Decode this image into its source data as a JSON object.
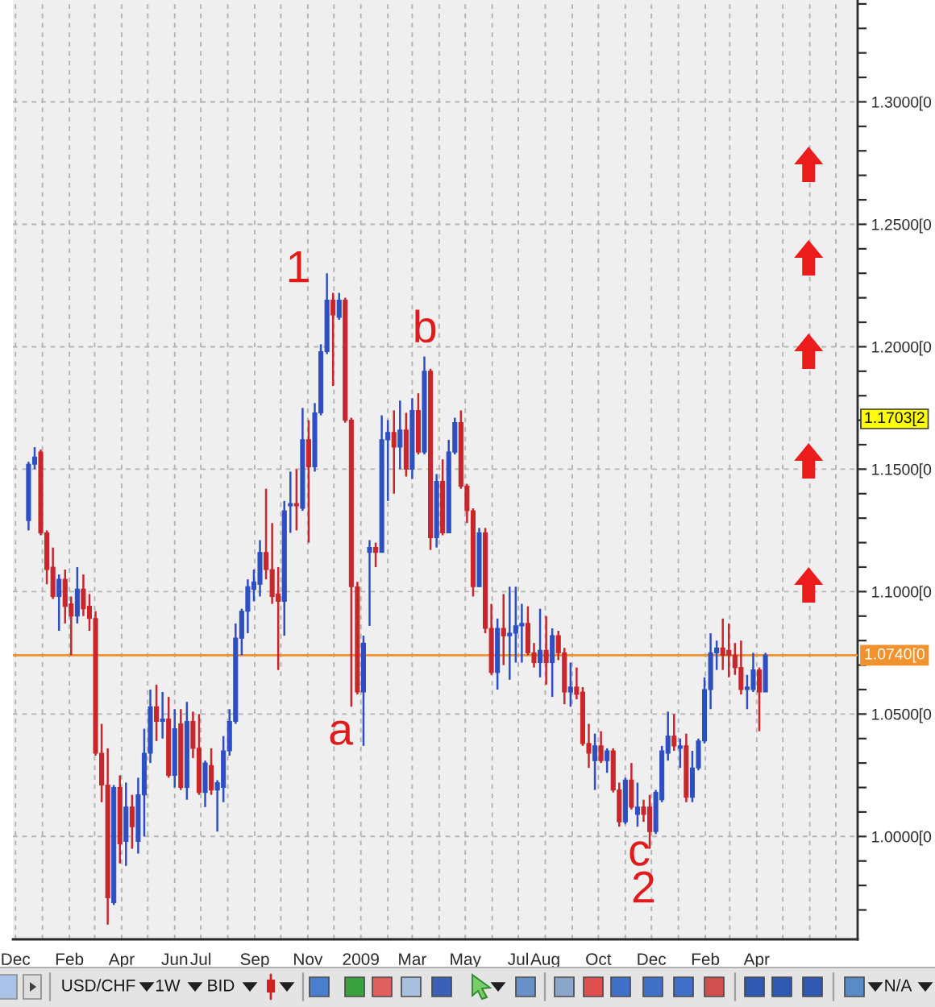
{
  "chart_data": {
    "type": "candlestick",
    "x": [
      "2007-12-16",
      "2007-12-23",
      "2007-12-30",
      "2008-01-06",
      "2008-01-13",
      "2008-01-20",
      "2008-01-27",
      "2008-02-03",
      "2008-02-10",
      "2008-02-17",
      "2008-02-24",
      "2008-03-02",
      "2008-03-09",
      "2008-03-16",
      "2008-03-23",
      "2008-03-30",
      "2008-04-06",
      "2008-04-13",
      "2008-04-20",
      "2008-04-27",
      "2008-05-04",
      "2008-05-11",
      "2008-05-18",
      "2008-05-25",
      "2008-06-01",
      "2008-06-08",
      "2008-06-15",
      "2008-06-22",
      "2008-06-29",
      "2008-07-06",
      "2008-07-13",
      "2008-07-20",
      "2008-07-27",
      "2008-08-03",
      "2008-08-10",
      "2008-08-17",
      "2008-08-24",
      "2008-08-31",
      "2008-09-07",
      "2008-09-14",
      "2008-09-21",
      "2008-09-28",
      "2008-10-05",
      "2008-10-12",
      "2008-10-19",
      "2008-10-26",
      "2008-11-02",
      "2008-11-09",
      "2008-11-16",
      "2008-11-23",
      "2008-11-30",
      "2008-12-07",
      "2008-12-14",
      "2008-12-21",
      "2008-12-28",
      "2009-01-04",
      "2009-01-11",
      "2009-01-18",
      "2009-01-25",
      "2009-02-01",
      "2009-02-08",
      "2009-02-15",
      "2009-02-22",
      "2009-03-01",
      "2009-03-08",
      "2009-03-15",
      "2009-03-22",
      "2009-03-29",
      "2009-04-05",
      "2009-04-12",
      "2009-04-19",
      "2009-04-26",
      "2009-05-03",
      "2009-05-10",
      "2009-05-17",
      "2009-05-24",
      "2009-05-31",
      "2009-06-07",
      "2009-06-14",
      "2009-06-21",
      "2009-06-28",
      "2009-07-05",
      "2009-07-12",
      "2009-07-19",
      "2009-07-26",
      "2009-08-02",
      "2009-08-09",
      "2009-08-16",
      "2009-08-23",
      "2009-08-30",
      "2009-09-06",
      "2009-09-13",
      "2009-09-20",
      "2009-09-27",
      "2009-10-04",
      "2009-10-11",
      "2009-10-18",
      "2009-10-25",
      "2009-11-01",
      "2009-11-08",
      "2009-11-15",
      "2009-11-22",
      "2009-11-29",
      "2009-12-06",
      "2009-12-13",
      "2009-12-20",
      "2009-12-27",
      "2010-01-03",
      "2010-01-10",
      "2010-01-17",
      "2010-01-24",
      "2010-01-31",
      "2010-02-07",
      "2010-02-14",
      "2010-02-21",
      "2010-02-28",
      "2010-03-07",
      "2010-03-14",
      "2010-03-21",
      "2010-03-28",
      "2010-04-04",
      "2010-04-11"
    ],
    "ohlc": [
      [
        1.129,
        1.153,
        1.125,
        1.152
      ],
      [
        1.152,
        1.159,
        1.15,
        1.155
      ],
      [
        1.157,
        1.158,
        1.123,
        1.124
      ],
      [
        1.124,
        1.125,
        1.103,
        1.109
      ],
      [
        1.11,
        1.118,
        1.097,
        1.098
      ],
      [
        1.098,
        1.107,
        1.084,
        1.105
      ],
      [
        1.105,
        1.109,
        1.087,
        1.094
      ],
      [
        1.095,
        1.098,
        1.074,
        1.09
      ],
      [
        1.09,
        1.11,
        1.087,
        1.101
      ],
      [
        1.101,
        1.107,
        1.09,
        1.093
      ],
      [
        1.094,
        1.099,
        1.084,
        1.089
      ],
      [
        1.089,
        1.092,
        1.033,
        1.034
      ],
      [
        1.034,
        1.046,
        1.014,
        1.021
      ],
      [
        1.021,
        1.036,
        0.964,
        0.975
      ],
      [
        0.973,
        1.021,
        0.972,
        1.02
      ],
      [
        1.02,
        1.025,
        0.989,
        0.997
      ],
      [
        0.998,
        1.022,
        0.988,
        1.012
      ],
      [
        1.012,
        1.017,
        0.995,
        1.004
      ],
      [
        0.998,
        1.024,
        0.993,
        1.017
      ],
      [
        1.017,
        1.044,
        1.0,
        1.034
      ],
      [
        1.034,
        1.06,
        1.03,
        1.053
      ],
      [
        1.053,
        1.062,
        1.039,
        1.047
      ],
      [
        1.047,
        1.059,
        1.04,
        1.048
      ],
      [
        1.048,
        1.057,
        1.024,
        1.025
      ],
      [
        1.025,
        1.052,
        1.02,
        1.044
      ],
      [
        1.046,
        1.052,
        1.019,
        1.02
      ],
      [
        1.02,
        1.055,
        1.015,
        1.047
      ],
      [
        1.047,
        1.051,
        1.032,
        1.036
      ],
      [
        1.036,
        1.05,
        1.017,
        1.018
      ],
      [
        1.018,
        1.031,
        1.012,
        1.03
      ],
      [
        1.029,
        1.036,
        1.017,
        1.019
      ],
      [
        1.019,
        1.023,
        1.002,
        1.022
      ],
      [
        1.02,
        1.041,
        1.014,
        1.035
      ],
      [
        1.035,
        1.052,
        1.033,
        1.047
      ],
      [
        1.047,
        1.087,
        1.046,
        1.081
      ],
      [
        1.081,
        1.093,
        1.074,
        1.092
      ],
      [
        1.092,
        1.105,
        1.083,
        1.102
      ],
      [
        1.101,
        1.109,
        1.096,
        1.104
      ],
      [
        1.103,
        1.121,
        1.098,
        1.116
      ],
      [
        1.116,
        1.142,
        1.105,
        1.109
      ],
      [
        1.109,
        1.128,
        1.095,
        1.098
      ],
      [
        1.099,
        1.11,
        1.068,
        1.096
      ],
      [
        1.096,
        1.137,
        1.082,
        1.133
      ],
      [
        1.135,
        1.149,
        1.124,
        1.136
      ],
      [
        1.136,
        1.15,
        1.125,
        1.135
      ],
      [
        1.134,
        1.175,
        1.133,
        1.162
      ],
      [
        1.162,
        1.17,
        1.12,
        1.151
      ],
      [
        1.151,
        1.177,
        1.149,
        1.173
      ],
      [
        1.173,
        1.201,
        1.172,
        1.198
      ],
      [
        1.198,
        1.23,
        1.197,
        1.219
      ],
      [
        1.219,
        1.222,
        1.184,
        1.213
      ],
      [
        1.212,
        1.222,
        1.211,
        1.219
      ],
      [
        1.219,
        1.22,
        1.169,
        1.17
      ],
      [
        1.17,
        1.171,
        1.053,
        1.102
      ],
      [
        1.102,
        1.104,
        1.058,
        1.059
      ],
      [
        1.059,
        1.082,
        1.037,
        1.079
      ],
      [
        1.116,
        1.121,
        1.086,
        1.118
      ],
      [
        1.118,
        1.12,
        1.11,
        1.116
      ],
      [
        1.116,
        1.172,
        1.116,
        1.162
      ],
      [
        1.162,
        1.17,
        1.137,
        1.165
      ],
      [
        1.165,
        1.174,
        1.14,
        1.159
      ],
      [
        1.159,
        1.178,
        1.15,
        1.166
      ],
      [
        1.166,
        1.173,
        1.147,
        1.15
      ],
      [
        1.15,
        1.179,
        1.146,
        1.174
      ],
      [
        1.174,
        1.181,
        1.156,
        1.157
      ],
      [
        1.157,
        1.196,
        1.156,
        1.19
      ],
      [
        1.19,
        1.191,
        1.117,
        1.122
      ],
      [
        1.122,
        1.148,
        1.118,
        1.145
      ],
      [
        1.145,
        1.154,
        1.123,
        1.124
      ],
      [
        1.124,
        1.162,
        1.124,
        1.157
      ],
      [
        1.157,
        1.171,
        1.156,
        1.169
      ],
      [
        1.169,
        1.174,
        1.142,
        1.143
      ],
      [
        1.143,
        1.144,
        1.128,
        1.133
      ],
      [
        1.133,
        1.134,
        1.098,
        1.102
      ],
      [
        1.102,
        1.126,
        1.102,
        1.124
      ],
      [
        1.124,
        1.126,
        1.083,
        1.085
      ],
      [
        1.085,
        1.095,
        1.066,
        1.067
      ],
      [
        1.067,
        1.089,
        1.06,
        1.085
      ],
      [
        1.085,
        1.099,
        1.07,
        1.082
      ],
      [
        1.082,
        1.102,
        1.064,
        1.083
      ],
      [
        1.083,
        1.102,
        1.071,
        1.086
      ],
      [
        1.086,
        1.095,
        1.071,
        1.087
      ],
      [
        1.087,
        1.094,
        1.074,
        1.075
      ],
      [
        1.075,
        1.079,
        1.069,
        1.071
      ],
      [
        1.071,
        1.093,
        1.065,
        1.076
      ],
      [
        1.076,
        1.09,
        1.062,
        1.071
      ],
      [
        1.071,
        1.085,
        1.057,
        1.082
      ],
      [
        1.082,
        1.084,
        1.072,
        1.075
      ],
      [
        1.075,
        1.077,
        1.054,
        1.059
      ],
      [
        1.059,
        1.071,
        1.053,
        1.061
      ],
      [
        1.061,
        1.069,
        1.056,
        1.058
      ],
      [
        1.059,
        1.061,
        1.037,
        1.038
      ],
      [
        1.038,
        1.046,
        1.028,
        1.034
      ],
      [
        1.031,
        1.042,
        1.019,
        1.037
      ],
      [
        1.037,
        1.043,
        1.03,
        1.031
      ],
      [
        1.031,
        1.036,
        1.026,
        1.035
      ],
      [
        1.035,
        1.036,
        1.018,
        1.019
      ],
      [
        1.019,
        1.022,
        1.004,
        1.006
      ],
      [
        1.006,
        1.024,
        1.005,
        1.023
      ],
      [
        1.023,
        1.03,
        1.011,
        1.012
      ],
      [
        1.009,
        1.022,
        1.004,
        1.012
      ],
      [
        1.012,
        1.015,
        1.006,
        1.009
      ],
      [
        1.012,
        1.017,
        0.995,
        1.002
      ],
      [
        1.002,
        1.019,
        1.001,
        1.018
      ],
      [
        1.015,
        1.037,
        1.014,
        1.035
      ],
      [
        1.034,
        1.051,
        1.031,
        1.041
      ],
      [
        1.041,
        1.05,
        1.035,
        1.037
      ],
      [
        1.036,
        1.04,
        1.028,
        1.037
      ],
      [
        1.037,
        1.042,
        1.014,
        1.016
      ],
      [
        1.016,
        1.035,
        1.014,
        1.028
      ],
      [
        1.028,
        1.04,
        1.027,
        1.039
      ],
      [
        1.039,
        1.065,
        1.038,
        1.06
      ],
      [
        1.06,
        1.083,
        1.052,
        1.075
      ],
      [
        1.075,
        1.08,
        1.068,
        1.077
      ],
      [
        1.077,
        1.089,
        1.068,
        1.074
      ],
      [
        1.076,
        1.087,
        1.065,
        1.074
      ],
      [
        1.074,
        1.079,
        1.066,
        1.069
      ],
      [
        1.069,
        1.08,
        1.058,
        1.06
      ],
      [
        1.06,
        1.066,
        1.052,
        1.061
      ],
      [
        1.06,
        1.075,
        1.059,
        1.068
      ],
      [
        1.068,
        1.069,
        1.043,
        1.059
      ],
      [
        1.059,
        1.075,
        1.059,
        1.074
      ]
    ],
    "colors": [
      "#2d4fc2",
      "#2d4fc2",
      "#c9262b",
      "#c9262b",
      "#c9262b",
      "#2d4fc2",
      "#c9262b",
      "#c9262b",
      "#2d4fc2",
      "#c9262b",
      "#c9262b",
      "#c9262b",
      "#c9262b",
      "#c9262b",
      "#2d4fc2",
      "#c9262b",
      "#2d4fc2",
      "#c9262b",
      "#2d4fc2",
      "#2d4fc2",
      "#2d4fc2",
      "#c9262b",
      "#2d4fc2",
      "#c9262b",
      "#2d4fc2",
      "#c9262b",
      "#2d4fc2",
      "#c9262b",
      "#c9262b",
      "#2d4fc2",
      "#c9262b",
      "#2d4fc2",
      "#2d4fc2",
      "#2d4fc2",
      "#2d4fc2",
      "#2d4fc2",
      "#2d4fc2",
      "#2d4fc2",
      "#2d4fc2",
      "#c9262b",
      "#c9262b",
      "#c9262b",
      "#2d4fc2",
      "#2d4fc2",
      "#c9262b",
      "#2d4fc2",
      "#c9262b",
      "#2d4fc2",
      "#2d4fc2",
      "#2d4fc2",
      "#c9262b",
      "#2d4fc2",
      "#c9262b",
      "#c9262b",
      "#c9262b",
      "#2d4fc2",
      "#2d4fc2",
      "#c9262b",
      "#2d4fc2",
      "#2d4fc2",
      "#c9262b",
      "#2d4fc2",
      "#c9262b",
      "#2d4fc2",
      "#c9262b",
      "#2d4fc2",
      "#c9262b",
      "#2d4fc2",
      "#c9262b",
      "#2d4fc2",
      "#2d4fc2",
      "#c9262b",
      "#c9262b",
      "#c9262b",
      "#2d4fc2",
      "#c9262b",
      "#c9262b",
      "#2d4fc2",
      "#c9262b",
      "#2d4fc2",
      "#2d4fc2",
      "#2d4fc2",
      "#c9262b",
      "#c9262b",
      "#2d4fc2",
      "#c9262b",
      "#2d4fc2",
      "#c9262b",
      "#c9262b",
      "#2d4fc2",
      "#c9262b",
      "#c9262b",
      "#c9262b",
      "#2d4fc2",
      "#c9262b",
      "#2d4fc2",
      "#c9262b",
      "#c9262b",
      "#2d4fc2",
      "#c9262b",
      "#2d4fc2",
      "#c9262b",
      "#c9262b",
      "#2d4fc2",
      "#2d4fc2",
      "#2d4fc2",
      "#c9262b",
      "#2d4fc2",
      "#c9262b",
      "#2d4fc2",
      "#2d4fc2",
      "#2d4fc2",
      "#2d4fc2",
      "#2d4fc2",
      "#c9262b",
      "#c9262b",
      "#c9262b",
      "#c9262b",
      "#2d4fc2",
      "#2d4fc2",
      "#c9262b",
      "#2d4fc2"
    ],
    "xlim": [
      "2007-11-28",
      "2010-07-26"
    ],
    "xticks": [
      {
        "value": "2007-12-01",
        "label": "Dec"
      },
      {
        "value": "2008-01-01",
        "label": null
      },
      {
        "value": "2008-02-01",
        "label": "Feb"
      },
      {
        "value": "2008-03-01",
        "label": null
      },
      {
        "value": "2008-04-01",
        "label": "Apr"
      },
      {
        "value": "2008-05-01",
        "label": null
      },
      {
        "value": "2008-06-01",
        "label": "Jun"
      },
      {
        "value": "2008-07-01",
        "label": "Jul"
      },
      {
        "value": "2008-08-01",
        "label": null
      },
      {
        "value": "2008-09-01",
        "label": "Sep"
      },
      {
        "value": "2008-10-01",
        "label": null
      },
      {
        "value": "2008-11-01",
        "label": "Nov"
      },
      {
        "value": "2008-12-01",
        "label": null
      },
      {
        "value": "2009-01-01",
        "label": "2009"
      },
      {
        "value": "2009-02-01",
        "label": null
      },
      {
        "value": "2009-03-01",
        "label": "Mar"
      },
      {
        "value": "2009-04-01",
        "label": null
      },
      {
        "value": "2009-05-01",
        "label": "May"
      },
      {
        "value": "2009-06-01",
        "label": null
      },
      {
        "value": "2009-07-01",
        "label": "Jul"
      },
      {
        "value": "2009-08-01",
        "label": "Aug"
      },
      {
        "value": "2009-09-01",
        "label": null
      },
      {
        "value": "2009-10-01",
        "label": "Oct"
      },
      {
        "value": "2009-11-01",
        "label": null
      },
      {
        "value": "2009-12-01",
        "label": "Dec"
      },
      {
        "value": "2010-01-01",
        "label": null
      },
      {
        "value": "2010-02-01",
        "label": "Feb"
      },
      {
        "value": "2010-03-01",
        "label": null
      },
      {
        "value": "2010-04-01",
        "label": "Apr"
      },
      {
        "value": "2010-05-01",
        "label": null
      },
      {
        "value": "2010-06-01",
        "label": null
      },
      {
        "value": "2010-07-01",
        "label": null
      }
    ],
    "ylim": [
      0.958,
      1.3416
    ],
    "yticks": [
      {
        "value": 0.97,
        "label": null
      },
      {
        "value": 0.98,
        "label": null
      },
      {
        "value": 0.99,
        "label": null
      },
      {
        "value": 1.0,
        "label": "1.0000"
      },
      {
        "value": 1.01,
        "label": null
      },
      {
        "value": 1.02,
        "label": null
      },
      {
        "value": 1.03,
        "label": null
      },
      {
        "value": 1.04,
        "label": null
      },
      {
        "value": 1.05,
        "label": "1.0500"
      },
      {
        "value": 1.06,
        "label": null
      },
      {
        "value": 1.07,
        "label": null
      },
      {
        "value": 1.08,
        "label": null
      },
      {
        "value": 1.09,
        "label": null
      },
      {
        "value": 1.1,
        "label": "1.1000"
      },
      {
        "value": 1.11,
        "label": null
      },
      {
        "value": 1.12,
        "label": null
      },
      {
        "value": 1.13,
        "label": null
      },
      {
        "value": 1.14,
        "label": null
      },
      {
        "value": 1.15,
        "label": "1.1500"
      },
      {
        "value": 1.16,
        "label": null
      },
      {
        "value": 1.17,
        "label": null
      },
      {
        "value": 1.18,
        "label": null
      },
      {
        "value": 1.19,
        "label": null
      },
      {
        "value": 1.2,
        "label": "1.2000"
      },
      {
        "value": 1.21,
        "label": null
      },
      {
        "value": 1.22,
        "label": null
      },
      {
        "value": 1.23,
        "label": null
      },
      {
        "value": 1.24,
        "label": null
      },
      {
        "value": 1.25,
        "label": "1.2500"
      },
      {
        "value": 1.26,
        "label": null
      },
      {
        "value": 1.27,
        "label": null
      },
      {
        "value": 1.28,
        "label": null
      },
      {
        "value": 1.29,
        "label": null
      },
      {
        "value": 1.3,
        "label": "1.3000"
      },
      {
        "value": 1.31,
        "label": null
      },
      {
        "value": 1.32,
        "label": null
      },
      {
        "value": 1.33,
        "label": null
      },
      {
        "value": 1.34,
        "label": null
      }
    ],
    "grid": true,
    "ref_lines": [
      {
        "axis": "y",
        "value": 1.074,
        "label": "1.0740[0",
        "color": "#f0922e"
      }
    ],
    "annotations": [
      "1",
      "a",
      "b",
      "c",
      "2",
      "1.1703[2",
      "USD/CHF",
      "1W",
      "BID",
      "N/A",
      "[0",
      "[0",
      "[0",
      "[0",
      "[0",
      "[0",
      "[0"
    ]
  }
}
